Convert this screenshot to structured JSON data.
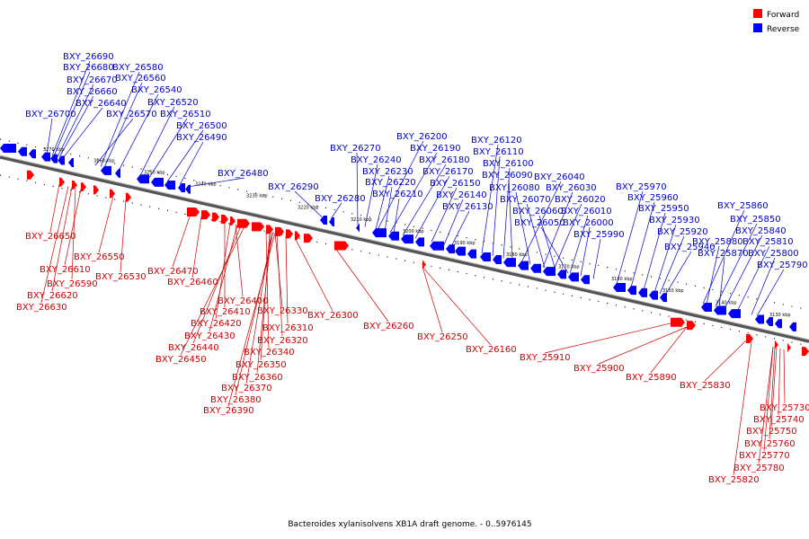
{
  "title": "Bacteroides xylanisolvens XB1A draft genome. - 0..5976145",
  "legend": [
    {
      "label": "Forward",
      "color": "#ff0000"
    },
    {
      "label": "Reverse",
      "color": "#0000ff"
    }
  ],
  "colors": {
    "forward": "#ff0000",
    "reverse": "#0000ff",
    "axis": "#808080",
    "text_forward": "#cc0000",
    "text_reverse": "#0000cc"
  },
  "ticks": [
    "3270 kbp",
    "3260 kbp",
    "3250 kbp",
    "3240 kbp",
    "3230 kbp",
    "3220 kbp",
    "3210 kbp",
    "3200 kbp",
    "3190 kbp",
    "3180 kbp",
    "3170 kbp",
    "3160 kbp",
    "3150 kbp",
    "3140 kbp",
    "3130 kbp"
  ],
  "reverse_labels": [
    "BXY_26690",
    "BXY_26680",
    "BXY_26580",
    "BXY_26670",
    "BXY_26560",
    "BXY_26660",
    "BXY_26540",
    "BXY_26640",
    "BXY_26520",
    "BXY_26700",
    "BXY_26570",
    "BXY_26510",
    "BXY_26500",
    "BXY_26490",
    "BXY_26480",
    "BXY_26290",
    "BXY_26280",
    "BXY_26200",
    "BXY_26120",
    "BXY_26270",
    "BXY_26190",
    "BXY_26110",
    "BXY_26240",
    "BXY_26180",
    "BXY_26100",
    "BXY_26230",
    "BXY_26170",
    "BXY_26090",
    "BXY_26040",
    "BXY_26220",
    "BXY_26150",
    "BXY_26080",
    "BXY_26030",
    "BXY_26210",
    "BXY_26140",
    "BXY_26070",
    "BXY_26020",
    "BXY_26130",
    "BXY_26060",
    "BXY_26010",
    "BXY_26050",
    "BXY_26000",
    "BXY_25990",
    "BXY_25970",
    "BXY_25960",
    "BXY_25950",
    "BXY_25930",
    "BXY_25920",
    "BXY_25940",
    "BXY_25860",
    "BXY_25850",
    "BXY_25840",
    "BXY_25880",
    "BXY_25810",
    "BXY_25870",
    "BXY_25800",
    "BXY_25790"
  ],
  "forward_labels": [
    "BXY_26650",
    "BXY_26550",
    "BXY_26610",
    "BXY_26530",
    "BXY_26590",
    "BXY_26620",
    "BXY_26630",
    "BXY_26470",
    "BXY_26460",
    "BXY_26400",
    "BXY_26330",
    "BXY_26410",
    "BXY_26300",
    "BXY_26420",
    "BXY_26310",
    "BXY_26260",
    "BXY_26430",
    "BXY_26320",
    "BXY_26250",
    "BXY_26440",
    "BXY_26340",
    "BXY_26160",
    "BXY_26450",
    "BXY_26350",
    "BXY_25910",
    "BXY_26360",
    "BXY_25900",
    "BXY_25890",
    "BXY_26370",
    "BXY_25830",
    "BXY_26380",
    "BXY_26390",
    "BXY_25730",
    "BXY_25740",
    "BXY_25750",
    "BXY_25760",
    "BXY_25770",
    "BXY_25780",
    "BXY_25820"
  ]
}
